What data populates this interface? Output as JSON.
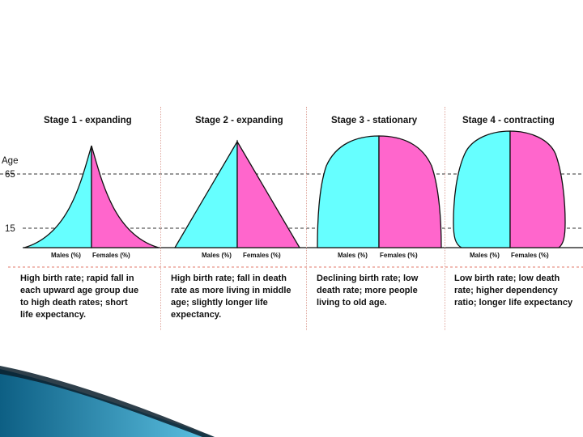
{
  "axis": {
    "age_label": "Age",
    "tick_high": "65",
    "tick_low": "15"
  },
  "stages": [
    {
      "title": "Stage 1 - expanding",
      "males_label": "Males (%)",
      "females_label": "Females (%)",
      "description": [
        "High birth rate; rapid fall in",
        "each upward age group due",
        "to high death rates; short",
        "life expectancy."
      ]
    },
    {
      "title": "Stage 2 - expanding",
      "males_label": "Males (%)",
      "females_label": "Females (%)",
      "description": [
        "High birth rate; fall in death",
        "rate as more living in middle",
        "age; slightly longer life",
        "expectancy."
      ]
    },
    {
      "title": "Stage 3 - stationary",
      "males_label": "Males (%)",
      "females_label": "Females (%)",
      "description": [
        "Declining birth rate; low",
        "death rate; more people",
        "living to old age."
      ]
    },
    {
      "title": "Stage 4 - contracting",
      "males_label": "Males (%)",
      "females_label": "Females (%)",
      "description": [
        "Low birth rate; low death",
        "rate; higher dependency",
        "ratio; longer life expectancy"
      ]
    }
  ],
  "colors": {
    "males": "#66ffff",
    "females": "#ff66cc",
    "outline": "#111111",
    "corner_dark": "#0d5f84",
    "corner_light": "#5ec3e4"
  }
}
